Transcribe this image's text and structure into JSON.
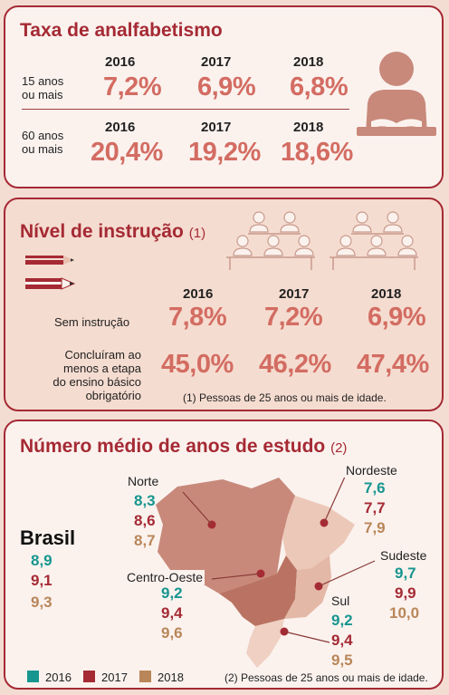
{
  "literacy": {
    "title": "Taxa de analfabetismo",
    "rows": [
      {
        "label1": "15 anos",
        "label2": "ou mais",
        "years": [
          "2016",
          "2017",
          "2018"
        ],
        "values": [
          "7,2%",
          "6,9%",
          "6,8%"
        ]
      },
      {
        "label1": "60 anos",
        "label2": "ou mais",
        "years": [
          "2016",
          "2017",
          "2018"
        ],
        "values": [
          "20,4%",
          "19,2%",
          "18,6%"
        ]
      }
    ]
  },
  "education": {
    "title": "Nível de instrução",
    "note": "(1)",
    "years": [
      "2016",
      "2017",
      "2018"
    ],
    "rows": [
      {
        "label": "Sem instrução",
        "values": [
          "7,8%",
          "7,2%",
          "6,9%"
        ]
      },
      {
        "label_lines": [
          "Concluíram ao",
          "menos a etapa",
          "do ensino básico",
          "obrigatório"
        ],
        "values": [
          "45,0%",
          "46,2%",
          "47,4%"
        ]
      }
    ],
    "footnote": "(1) Pessoas de 25 anos ou mais de idade."
  },
  "study_years": {
    "title": "Número médio de anos de estudo",
    "note": "(2)",
    "brasil": {
      "name": "Brasil",
      "values": [
        "8,9",
        "9,1",
        "9,3"
      ]
    },
    "regions": {
      "norte": {
        "name": "Norte",
        "values": [
          "8,3",
          "8,6",
          "8,7"
        ]
      },
      "nordeste": {
        "name": "Nordeste",
        "values": [
          "7,6",
          "7,7",
          "7,9"
        ]
      },
      "centro_oeste": {
        "name": "Centro-Oeste",
        "values": [
          "9,2",
          "9,4",
          "9,6"
        ]
      },
      "sudeste": {
        "name": "Sudeste",
        "values": [
          "9,7",
          "9,9",
          "10,0"
        ]
      },
      "sul": {
        "name": "Sul",
        "values": [
          "9,2",
          "9,4",
          "9,5"
        ]
      }
    },
    "legend": [
      "2016",
      "2017",
      "2018"
    ],
    "footnote": "(2) Pessoas de 25 anos ou mais de idade."
  },
  "colors": {
    "y2016": "#17968f",
    "y2017": "#a52a34",
    "y2018": "#b98659",
    "accent": "#a52a34"
  },
  "icons": [
    "reading-person-icon",
    "pencil-icon",
    "classroom-icon"
  ]
}
